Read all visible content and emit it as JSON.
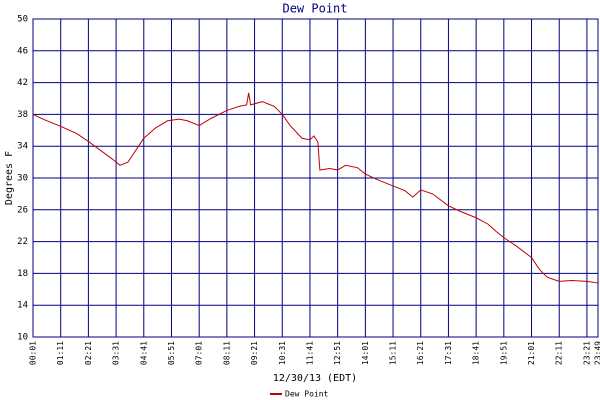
{
  "chart_data": {
    "type": "line",
    "title": "Dew Point",
    "x_label": "12/30/13 (EDT)",
    "y_label": "Degrees F",
    "x": [
      "00:01",
      "00:31",
      "01:11",
      "01:51",
      "02:21",
      "02:51",
      "03:21",
      "03:41",
      "04:01",
      "04:21",
      "04:41",
      "05:11",
      "05:41",
      "06:11",
      "06:31",
      "07:01",
      "07:31",
      "08:11",
      "08:41",
      "09:01",
      "09:06",
      "09:11",
      "09:41",
      "10:11",
      "10:31",
      "10:51",
      "11:21",
      "11:41",
      "11:51",
      "12:01",
      "12:06",
      "12:31",
      "12:51",
      "13:11",
      "13:41",
      "14:01",
      "14:31",
      "15:11",
      "15:41",
      "16:01",
      "16:21",
      "16:51",
      "17:31",
      "18:01",
      "18:41",
      "19:11",
      "19:31",
      "19:51",
      "20:21",
      "21:01",
      "21:21",
      "21:41",
      "22:11",
      "22:41",
      "23:21",
      "23:49"
    ],
    "series": [
      {
        "name": "Dew Point",
        "color": "#c00000",
        "values": [
          38,
          37.3,
          36.5,
          35.6,
          34.6,
          33.5,
          32.4,
          31.6,
          32,
          33.5,
          35,
          36.3,
          37.2,
          37.4,
          37.2,
          36.6,
          37.5,
          38.5,
          39,
          39.2,
          40.7,
          39.2,
          39.6,
          39,
          38,
          36.6,
          35,
          34.8,
          35.3,
          34.5,
          31,
          31.2,
          31,
          31.6,
          31.3,
          30.5,
          29.8,
          29,
          28.4,
          27.6,
          28.5,
          28,
          26.5,
          25.8,
          25,
          24.2,
          23.3,
          22.5,
          21.5,
          20,
          18.5,
          17.5,
          17,
          17.1,
          17,
          16.8
        ]
      }
    ],
    "xticks": [
      "00:01",
      "01:11",
      "02:21",
      "03:31",
      "04:41",
      "05:51",
      "07:01",
      "08:11",
      "09:21",
      "10:31",
      "11:41",
      "12:51",
      "14:01",
      "15:11",
      "16:21",
      "17:31",
      "18:41",
      "19:51",
      "21:01",
      "22:11",
      "23:21",
      "23:49"
    ],
    "ylim": [
      10,
      50
    ],
    "yticks": [
      10,
      14,
      18,
      22,
      26,
      30,
      34,
      38,
      42,
      46,
      50
    ],
    "grid": true
  }
}
